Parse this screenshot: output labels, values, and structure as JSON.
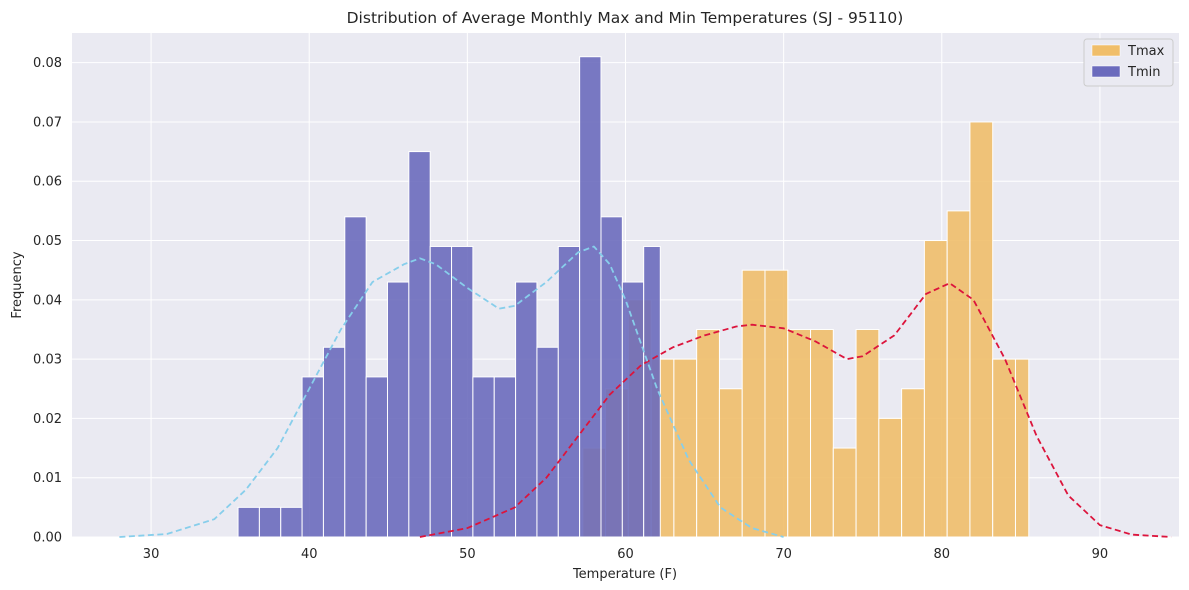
{
  "chart_data": {
    "type": "histogram",
    "title": "Distribution of Average Monthly Max and Min Temperatures (SJ - 95110)",
    "xlabel": "Temperature (F)",
    "ylabel": "Frequency",
    "xlim": [
      25,
      95
    ],
    "ylim": [
      0,
      0.085
    ],
    "xticks": [
      "30",
      "40",
      "50",
      "60",
      "70",
      "80",
      "90"
    ],
    "yticks": [
      "0.00",
      "0.01",
      "0.02",
      "0.03",
      "0.04",
      "0.05",
      "0.06",
      "0.07",
      "0.08"
    ],
    "grid": true,
    "legend_position": "top-right",
    "series": [
      {
        "name": "Tmax",
        "color": "#F0BE6A",
        "bin_edges": [
          57.3,
          58.74,
          60.18,
          61.62,
          63.06,
          64.5,
          65.94,
          67.38,
          68.82,
          70.26,
          71.7,
          73.14,
          74.58,
          76.02,
          77.46,
          78.9,
          80.34,
          81.78,
          83.22,
          84.66,
          85.5
        ],
        "values": [
          0.015,
          0.025,
          0.04,
          0.03,
          0.03,
          0.035,
          0.025,
          0.045,
          0.045,
          0.035,
          0.035,
          0.015,
          0.035,
          0.02,
          0.025,
          0.05,
          0.055,
          0.07,
          0.03,
          0.03
        ],
        "kde_color": "#DC143C",
        "kde": [
          [
            47,
            0.0
          ],
          [
            50,
            0.0015
          ],
          [
            53,
            0.005
          ],
          [
            55,
            0.01
          ],
          [
            57,
            0.017
          ],
          [
            59,
            0.024
          ],
          [
            61,
            0.029
          ],
          [
            63,
            0.032
          ],
          [
            65,
            0.034
          ],
          [
            67,
            0.0355
          ],
          [
            68,
            0.0358
          ],
          [
            70,
            0.0352
          ],
          [
            72,
            0.033
          ],
          [
            74,
            0.03
          ],
          [
            75,
            0.0305
          ],
          [
            77,
            0.034
          ],
          [
            79,
            0.041
          ],
          [
            80.5,
            0.0428
          ],
          [
            82,
            0.04
          ],
          [
            84,
            0.03
          ],
          [
            86,
            0.017
          ],
          [
            88,
            0.007
          ],
          [
            90,
            0.002
          ],
          [
            92,
            0.0004
          ],
          [
            94.5,
            0.0
          ]
        ]
      },
      {
        "name": "Tmin",
        "color": "#6B6BBD",
        "bin_edges": [
          35.5,
          36.85,
          38.2,
          39.55,
          40.9,
          42.25,
          43.6,
          44.95,
          46.3,
          47.65,
          49.0,
          50.35,
          51.7,
          53.05,
          54.4,
          55.75,
          57.1,
          58.45,
          59.8,
          61.15,
          62.2
        ],
        "values": [
          0.005,
          0.005,
          0.005,
          0.027,
          0.032,
          0.054,
          0.027,
          0.043,
          0.065,
          0.049,
          0.049,
          0.027,
          0.027,
          0.043,
          0.032,
          0.049,
          0.081,
          0.054,
          0.043,
          0.049
        ],
        "kde_color": "#87CEEB",
        "kde": [
          [
            28,
            0.0
          ],
          [
            31,
            0.0005
          ],
          [
            34,
            0.003
          ],
          [
            36,
            0.008
          ],
          [
            38,
            0.015
          ],
          [
            40,
            0.025
          ],
          [
            42,
            0.035
          ],
          [
            44,
            0.043
          ],
          [
            46,
            0.046
          ],
          [
            47,
            0.047
          ],
          [
            48,
            0.046
          ],
          [
            50,
            0.042
          ],
          [
            52,
            0.0385
          ],
          [
            53,
            0.039
          ],
          [
            55,
            0.043
          ],
          [
            57,
            0.048
          ],
          [
            58,
            0.049
          ],
          [
            59,
            0.046
          ],
          [
            60,
            0.04
          ],
          [
            62,
            0.025
          ],
          [
            64,
            0.013
          ],
          [
            66,
            0.005
          ],
          [
            68,
            0.0015
          ],
          [
            70,
            0.0
          ]
        ]
      }
    ]
  }
}
